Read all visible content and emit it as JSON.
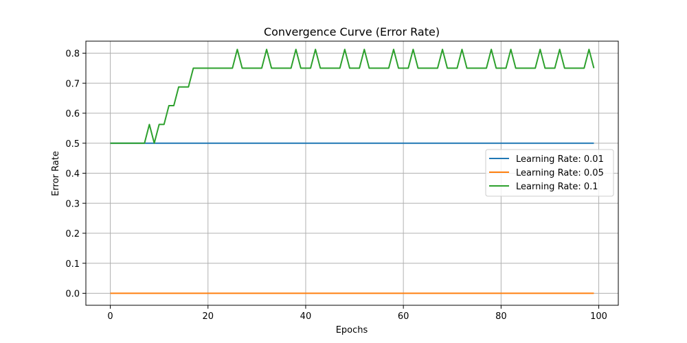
{
  "chart_data": {
    "type": "line",
    "title": "Convergence Curve (Error Rate)",
    "xlabel": "Epochs",
    "ylabel": "Error Rate",
    "xlim": [
      -5,
      104
    ],
    "ylim": [
      -0.04,
      0.84
    ],
    "xticks": [
      0,
      20,
      40,
      60,
      80,
      100
    ],
    "yticks": [
      0.0,
      0.1,
      0.2,
      0.3,
      0.4,
      0.5,
      0.6,
      0.7,
      0.8
    ],
    "ytick_labels": [
      "0.0",
      "0.1",
      "0.2",
      "0.3",
      "0.4",
      "0.5",
      "0.6",
      "0.7",
      "0.8"
    ],
    "grid": true,
    "legend_position": "center-right",
    "series": [
      {
        "name": "Learning Rate: 0.01",
        "color": "#1f77b4",
        "x_start": 0,
        "x_step": 1,
        "values": [
          0.5,
          0.5,
          0.5,
          0.5,
          0.5,
          0.5,
          0.5,
          0.5,
          0.5,
          0.5,
          0.5,
          0.5,
          0.5,
          0.5,
          0.5,
          0.5,
          0.5,
          0.5,
          0.5,
          0.5,
          0.5,
          0.5,
          0.5,
          0.5,
          0.5,
          0.5,
          0.5,
          0.5,
          0.5,
          0.5,
          0.5,
          0.5,
          0.5,
          0.5,
          0.5,
          0.5,
          0.5,
          0.5,
          0.5,
          0.5,
          0.5,
          0.5,
          0.5,
          0.5,
          0.5,
          0.5,
          0.5,
          0.5,
          0.5,
          0.5,
          0.5,
          0.5,
          0.5,
          0.5,
          0.5,
          0.5,
          0.5,
          0.5,
          0.5,
          0.5,
          0.5,
          0.5,
          0.5,
          0.5,
          0.5,
          0.5,
          0.5,
          0.5,
          0.5,
          0.5,
          0.5,
          0.5,
          0.5,
          0.5,
          0.5,
          0.5,
          0.5,
          0.5,
          0.5,
          0.5,
          0.5,
          0.5,
          0.5,
          0.5,
          0.5,
          0.5,
          0.5,
          0.5,
          0.5,
          0.5,
          0.5,
          0.5,
          0.5,
          0.5,
          0.5,
          0.5,
          0.5,
          0.5,
          0.5,
          0.5
        ]
      },
      {
        "name": "Learning Rate: 0.05",
        "color": "#ff7f0e",
        "x_start": 0,
        "x_step": 1,
        "values": [
          0,
          0,
          0,
          0,
          0,
          0,
          0,
          0,
          0,
          0,
          0,
          0,
          0,
          0,
          0,
          0,
          0,
          0,
          0,
          0,
          0,
          0,
          0,
          0,
          0,
          0,
          0,
          0,
          0,
          0,
          0,
          0,
          0,
          0,
          0,
          0,
          0,
          0,
          0,
          0,
          0,
          0,
          0,
          0,
          0,
          0,
          0,
          0,
          0,
          0,
          0,
          0,
          0,
          0,
          0,
          0,
          0,
          0,
          0,
          0,
          0,
          0,
          0,
          0,
          0,
          0,
          0,
          0,
          0,
          0,
          0,
          0,
          0,
          0,
          0,
          0,
          0,
          0,
          0,
          0,
          0,
          0,
          0,
          0,
          0,
          0,
          0,
          0,
          0,
          0,
          0,
          0,
          0,
          0,
          0,
          0,
          0,
          0,
          0,
          0
        ]
      },
      {
        "name": "Learning Rate: 0.1",
        "color": "#2ca02c",
        "x_start": 0,
        "x_step": 1,
        "values": [
          0.5,
          0.5,
          0.5,
          0.5,
          0.5,
          0.5,
          0.5,
          0.5,
          0.5625,
          0.5,
          0.5625,
          0.5625,
          0.625,
          0.625,
          0.6875,
          0.6875,
          0.6875,
          0.75,
          0.75,
          0.75,
          0.75,
          0.75,
          0.75,
          0.75,
          0.75,
          0.75,
          0.8125,
          0.75,
          0.75,
          0.75,
          0.75,
          0.75,
          0.8125,
          0.75,
          0.75,
          0.75,
          0.75,
          0.75,
          0.8125,
          0.75,
          0.75,
          0.75,
          0.8125,
          0.75,
          0.75,
          0.75,
          0.75,
          0.75,
          0.8125,
          0.75,
          0.75,
          0.75,
          0.8125,
          0.75,
          0.75,
          0.75,
          0.75,
          0.75,
          0.8125,
          0.75,
          0.75,
          0.75,
          0.8125,
          0.75,
          0.75,
          0.75,
          0.75,
          0.75,
          0.8125,
          0.75,
          0.75,
          0.75,
          0.8125,
          0.75,
          0.75,
          0.75,
          0.75,
          0.75,
          0.8125,
          0.75,
          0.75,
          0.75,
          0.8125,
          0.75,
          0.75,
          0.75,
          0.75,
          0.75,
          0.8125,
          0.75,
          0.75,
          0.75,
          0.8125,
          0.75,
          0.75,
          0.75,
          0.75,
          0.75,
          0.8125,
          0.75
        ]
      }
    ]
  }
}
